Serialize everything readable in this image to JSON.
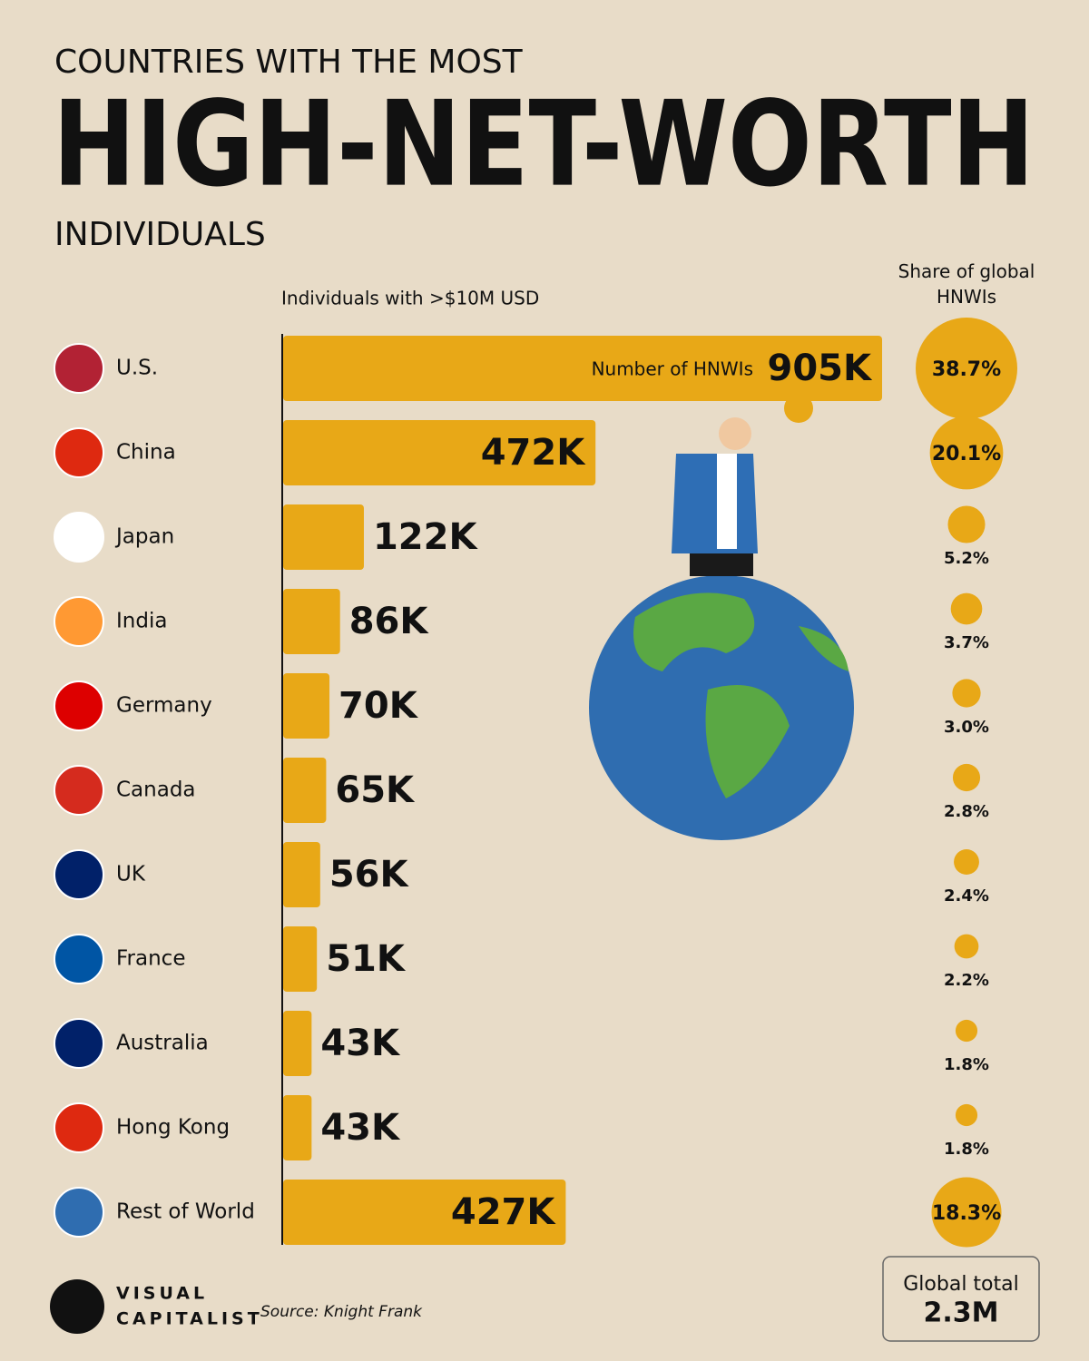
{
  "chart_data": {
    "type": "bar",
    "kicker": "COUNTRIES WITH THE MOST",
    "title": "HIGH-NET-WORTH",
    "subtitle": "INDIVIDUALS",
    "axis_label": "Individuals with >$10M USD",
    "categories": [
      "U.S.",
      "China",
      "Japan",
      "India",
      "Germany",
      "Canada",
      "UK",
      "France",
      "Australia",
      "Hong Kong",
      "Rest of World"
    ],
    "series": [
      {
        "name": "Number of HNWIs",
        "color": "#e8a817",
        "values": [
          905000,
          472000,
          122000,
          86000,
          70000,
          65000,
          56000,
          51000,
          43000,
          43000,
          427000
        ],
        "value_labels": [
          "905K",
          "472K",
          "122K",
          "86K",
          "70K",
          "65K",
          "56K",
          "51K",
          "43K",
          "43K",
          "427K"
        ]
      },
      {
        "name": "Share of global HNWIs",
        "color": "#e8a817",
        "values": [
          38.7,
          20.1,
          5.2,
          3.7,
          3.0,
          2.8,
          2.4,
          2.2,
          1.8,
          1.8,
          18.3
        ],
        "value_labels": [
          "38.7%",
          "20.1%",
          "5.2%",
          "3.7%",
          "3.0%",
          "2.8%",
          "2.4%",
          "2.2%",
          "1.8%",
          "1.8%",
          "18.3%"
        ]
      }
    ],
    "total_label": "Global total",
    "total": "2.3M",
    "source": "Source: Knight Frank",
    "brand": [
      "VISUAL",
      "CAPITALIST"
    ]
  }
}
